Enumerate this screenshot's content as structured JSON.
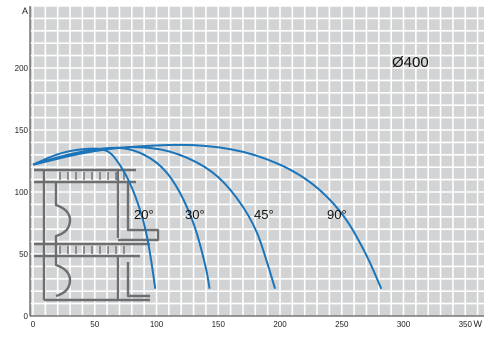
{
  "chart_data": {
    "type": "line",
    "xlabel": "W",
    "ylabel": "A",
    "xlim": [
      0,
      400
    ],
    "ylim": [
      0,
      220
    ],
    "x_ticks": [
      0,
      50,
      100,
      150,
      200,
      250,
      300,
      350
    ],
    "y_ticks": [
      0,
      50,
      100,
      150,
      200
    ],
    "grid": true,
    "background": "#d2d3d4",
    "grid_color": "#ffffff",
    "line_color": "#1b75bb",
    "annotation": "Ø400",
    "series": [
      {
        "name": "20°",
        "x": [
          0,
          20,
          40,
          60,
          70,
          80,
          90,
          95,
          99
        ],
        "y": [
          122,
          131,
          135,
          135,
          123,
          105,
          76,
          50,
          22
        ]
      },
      {
        "name": "30°",
        "x": [
          0,
          30,
          60,
          80,
          100,
          115,
          130,
          140,
          143
        ],
        "y": [
          122,
          131,
          136,
          135,
          125,
          108,
          77,
          40,
          22
        ]
      },
      {
        "name": "45°",
        "x": [
          0,
          40,
          80,
          110,
          140,
          160,
          180,
          190,
          196
        ],
        "y": [
          122,
          133,
          137,
          134,
          121,
          103,
          73,
          42,
          22
        ]
      },
      {
        "name": "90°",
        "x": [
          0,
          50,
          100,
          140,
          180,
          220,
          250,
          270,
          282
        ],
        "y": [
          122,
          134,
          138,
          138,
          131,
          113,
          85,
          50,
          22
        ]
      }
    ]
  }
}
